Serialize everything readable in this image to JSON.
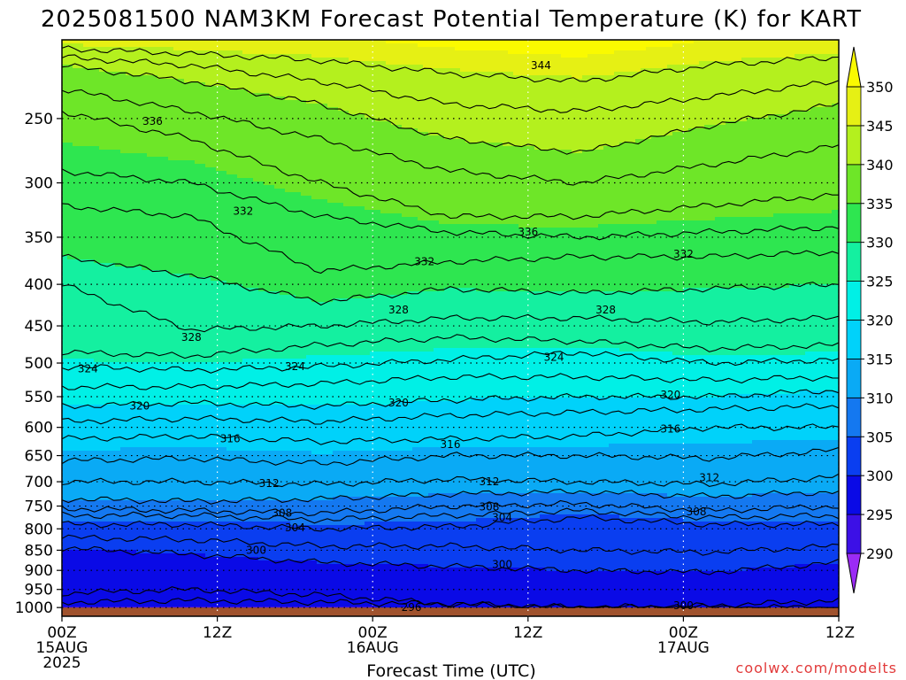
{
  "chart_data": {
    "type": "heatmap",
    "title": "2025081500 NAM3KM Forecast Potential Temperature (K) for KART",
    "xlabel": "Forecast Time (UTC)",
    "ylabel": "",
    "credit": "coolwx.com/modelts",
    "x_tick_labels": [
      {
        "hours": 0,
        "lines": [
          "00Z",
          "15AUG",
          "2025"
        ]
      },
      {
        "hours": 12,
        "lines": [
          "12Z"
        ]
      },
      {
        "hours": 24,
        "lines": [
          "00Z",
          "16AUG"
        ]
      },
      {
        "hours": 36,
        "lines": [
          "12Z"
        ]
      },
      {
        "hours": 48,
        "lines": [
          "00Z",
          "17AUG"
        ]
      },
      {
        "hours": 60,
        "lines": [
          "12Z"
        ]
      }
    ],
    "xlim": [
      0,
      60
    ],
    "y_ticks": [
      250,
      300,
      350,
      400,
      450,
      500,
      550,
      600,
      650,
      700,
      750,
      800,
      850,
      900,
      950,
      1000
    ],
    "ylim_hpa": [
      200,
      1025
    ],
    "y_scale": "log",
    "colorbar": {
      "ticks": [
        290,
        295,
        300,
        305,
        310,
        315,
        320,
        325,
        330,
        335,
        340,
        345,
        350
      ],
      "levels": [
        {
          "from": 285,
          "to": 290,
          "color": "#9b2bf5"
        },
        {
          "from": 290,
          "to": 295,
          "color": "#3c10e6"
        },
        {
          "from": 295,
          "to": 300,
          "color": "#0a0ae6"
        },
        {
          "from": 300,
          "to": 305,
          "color": "#0a3ef0"
        },
        {
          "from": 305,
          "to": 310,
          "color": "#1478f0"
        },
        {
          "from": 310,
          "to": 315,
          "color": "#0aaaf5"
        },
        {
          "from": 315,
          "to": 320,
          "color": "#00d2fa"
        },
        {
          "from": 320,
          "to": 325,
          "color": "#00f0e6"
        },
        {
          "from": 325,
          "to": 330,
          "color": "#14f0a0"
        },
        {
          "from": 330,
          "to": 335,
          "color": "#2ee650"
        },
        {
          "from": 335,
          "to": 340,
          "color": "#6ee628"
        },
        {
          "from": 340,
          "to": 345,
          "color": "#b4f01e"
        },
        {
          "from": 345,
          "to": 350,
          "color": "#e6f014"
        },
        {
          "from": 350,
          "to": 355,
          "color": "#fafa00"
        }
      ]
    },
    "ground_color": "#a0522d",
    "contour_lines": [
      {
        "theta": 296,
        "values": [
          985,
          980,
          985,
          990,
          1000,
          1000,
          1000
        ]
      },
      {
        "theta": 298,
        "values": [
          960,
          950,
          965,
          990,
          1000,
          995,
          980
        ]
      },
      {
        "theta": 300,
        "values": [
          845,
          860,
          880,
          890,
          900,
          905,
          880
        ]
      },
      {
        "theta": 302,
        "values": [
          820,
          825,
          840,
          840,
          850,
          855,
          840
        ]
      },
      {
        "theta": 304,
        "values": [
          790,
          790,
          800,
          795,
          775,
          790,
          790
        ]
      },
      {
        "theta": 306,
        "values": [
          770,
          770,
          780,
          770,
          760,
          775,
          770
        ]
      },
      {
        "theta": 308,
        "values": [
          755,
          760,
          765,
          750,
          745,
          760,
          750
        ]
      },
      {
        "theta": 310,
        "values": [
          735,
          740,
          735,
          725,
          720,
          730,
          720
        ]
      },
      {
        "theta": 312,
        "values": [
          700,
          700,
          705,
          695,
          700,
          705,
          690
        ]
      },
      {
        "theta": 314,
        "values": [
          660,
          655,
          665,
          650,
          650,
          655,
          640
        ]
      },
      {
        "theta": 316,
        "values": [
          620,
          615,
          625,
          620,
          615,
          600,
          600
        ]
      },
      {
        "theta": 318,
        "values": [
          590,
          585,
          590,
          580,
          575,
          570,
          565
        ]
      },
      {
        "theta": 320,
        "values": [
          565,
          560,
          565,
          555,
          550,
          550,
          540
        ]
      },
      {
        "theta": 322,
        "values": [
          535,
          535,
          530,
          520,
          520,
          525,
          520
        ]
      },
      {
        "theta": 324,
        "values": [
          505,
          510,
          505,
          495,
          485,
          500,
          495
        ]
      },
      {
        "theta": 326,
        "values": [
          485,
          490,
          475,
          465,
          470,
          480,
          475
        ]
      },
      {
        "theta": 328,
        "values": [
          400,
          455,
          450,
          440,
          440,
          445,
          440
        ]
      },
      {
        "theta": 330,
        "values": [
          370,
          390,
          420,
          405,
          410,
          405,
          400
        ]
      },
      {
        "theta": 332,
        "values": [
          320,
          330,
          385,
          375,
          370,
          370,
          365
        ]
      },
      {
        "theta": 334,
        "values": [
          290,
          300,
          330,
          345,
          350,
          345,
          340
        ]
      },
      {
        "theta": 336,
        "values": [
          245,
          265,
          300,
          330,
          330,
          320,
          310
        ]
      },
      {
        "theta": 338,
        "values": [
          230,
          245,
          265,
          290,
          300,
          285,
          270
        ]
      },
      {
        "theta": 340,
        "values": [
          215,
          225,
          240,
          265,
          275,
          255,
          240
        ]
      },
      {
        "theta": 342,
        "values": [
          210,
          215,
          225,
          240,
          245,
          235,
          225
        ]
      },
      {
        "theta": 344,
        "values": [
          205,
          208,
          212,
          220,
          225,
          215,
          210
        ]
      }
    ],
    "contour_labels": [
      {
        "text": "336",
        "x": 7,
        "p": 252
      },
      {
        "text": "344",
        "x": 37,
        "p": 215
      },
      {
        "text": "332",
        "x": 14,
        "p": 325
      },
      {
        "text": "336",
        "x": 36,
        "p": 345
      },
      {
        "text": "332",
        "x": 28,
        "p": 375
      },
      {
        "text": "332",
        "x": 48,
        "p": 367
      },
      {
        "text": "328",
        "x": 10,
        "p": 465
      },
      {
        "text": "328",
        "x": 26,
        "p": 430
      },
      {
        "text": "328",
        "x": 42,
        "p": 430
      },
      {
        "text": "324",
        "x": 2,
        "p": 508
      },
      {
        "text": "324",
        "x": 18,
        "p": 505
      },
      {
        "text": "324",
        "x": 38,
        "p": 492
      },
      {
        "text": "320",
        "x": 6,
        "p": 565
      },
      {
        "text": "320",
        "x": 26,
        "p": 560
      },
      {
        "text": "320",
        "x": 47,
        "p": 547
      },
      {
        "text": "316",
        "x": 13,
        "p": 620
      },
      {
        "text": "316",
        "x": 30,
        "p": 630
      },
      {
        "text": "316",
        "x": 47,
        "p": 603
      },
      {
        "text": "312",
        "x": 16,
        "p": 703
      },
      {
        "text": "312",
        "x": 33,
        "p": 700
      },
      {
        "text": "312",
        "x": 50,
        "p": 692
      },
      {
        "text": "308",
        "x": 17,
        "p": 765
      },
      {
        "text": "308",
        "x": 33,
        "p": 752
      },
      {
        "text": "308",
        "x": 49,
        "p": 762
      },
      {
        "text": "304",
        "x": 18,
        "p": 797
      },
      {
        "text": "304",
        "x": 34,
        "p": 775
      },
      {
        "text": "300",
        "x": 15,
        "p": 850
      },
      {
        "text": "300",
        "x": 34,
        "p": 885
      },
      {
        "text": "300",
        "x": 48,
        "p": 995
      },
      {
        "text": "296",
        "x": 27,
        "p": 1000
      }
    ]
  }
}
